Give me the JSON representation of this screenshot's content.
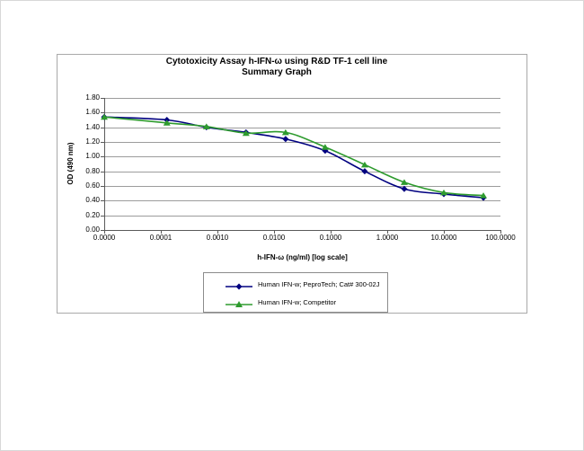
{
  "chart": {
    "title_line1": "Cytotoxicity Assay h-IFN-ω using R&D TF-1 cell line",
    "title_line2": "Summary Graph",
    "y_axis_title": "OD (490 nm)",
    "x_axis_title": "h-IFN-ω (ng/ml) [log scale]"
  },
  "chart_data": {
    "type": "line",
    "x_scale": "log",
    "x": [
      0,
      0.000128,
      0.00064,
      0.0032,
      0.016,
      0.08,
      0.4,
      2,
      10,
      50
    ],
    "series": [
      {
        "name": "Human IFN-w; PeproTech; Cat# 300-02J",
        "color": "#000080",
        "marker": "diamond",
        "values": [
          1.54,
          1.5,
          1.4,
          1.33,
          1.24,
          1.08,
          0.8,
          0.56,
          0.49,
          0.44
        ]
      },
      {
        "name": "Human IFN-w; Competitor",
        "color": "#2E9B2E",
        "marker": "triangle",
        "values": [
          1.54,
          1.46,
          1.41,
          1.32,
          1.33,
          1.13,
          0.89,
          0.65,
          0.51,
          0.47
        ]
      }
    ],
    "title": "Cytotoxicity Assay h-IFN-ω using R&D TF-1 cell line — Summary Graph",
    "xlabel": "h-IFN-ω (ng/ml) [log scale]",
    "ylabel": "OD (490 nm)",
    "ylim": [
      0,
      1.8
    ],
    "y_tick_step": 0.2,
    "y_tick_labels": [
      "0.00",
      "0.20",
      "0.40",
      "0.60",
      "0.80",
      "1.00",
      "1.20",
      "1.40",
      "1.60",
      "1.80"
    ],
    "x_tick_values": [
      0,
      0.0001,
      0.001,
      0.01,
      0.1,
      1,
      10,
      100
    ],
    "x_tick_labels": [
      "0.0000",
      "0.0001",
      "0.0010",
      "0.0100",
      "0.1000",
      "1.0000",
      "10.0000",
      "100.0000"
    ],
    "grid": "horizontal",
    "legend_position": "bottom-inside",
    "colors": {
      "gridline": "#9c9c9c",
      "axis": "#5a5a5a",
      "frame_border": "#a9a9a9",
      "legend_border": "#8c8c8c",
      "background": "#ffffff"
    }
  }
}
